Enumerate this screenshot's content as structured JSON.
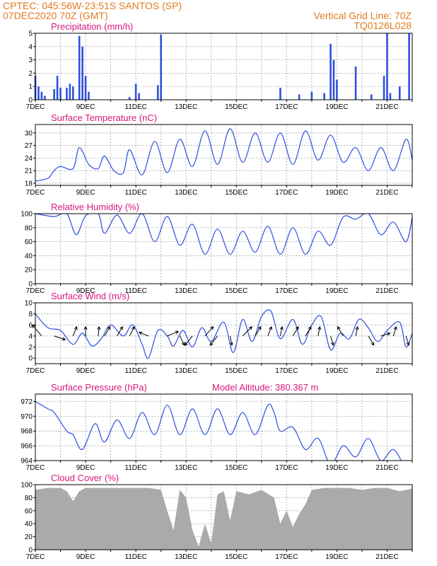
{
  "header": {
    "line1": "CPTEC:   045:56W-23:51S  SANTOS (SP)",
    "line2": "07DEC2020 70Z (GMT)",
    "right1": "Vertical Grid Line: 70Z",
    "right2": "TQ0126L028"
  },
  "colors": {
    "header": "#e07b20",
    "panel_title": "#d6187d",
    "series": "#2f4fe0",
    "cloud": "#aaaaaa",
    "grid": "#9a9a9a"
  },
  "chart_data": [
    {
      "type": "bar",
      "title": "Precipitation (mm/h)",
      "x_start": "2020-12-07",
      "x_end": "2020-12-22",
      "xticks": [
        "7DEC",
        "9DEC",
        "11DEC",
        "13DEC",
        "15DEC",
        "17DEC",
        "19DEC",
        "21DEC"
      ],
      "ylim": [
        0,
        5
      ],
      "yticks": [
        0,
        1,
        2,
        3,
        4,
        5
      ],
      "grid": true,
      "points": [
        [
          "2020-12-07T00",
          1.8
        ],
        [
          "2020-12-07T03",
          1.0
        ],
        [
          "2020-12-07T06",
          0.6
        ],
        [
          "2020-12-07T09",
          0.3
        ],
        [
          "2020-12-07T18",
          0.8
        ],
        [
          "2020-12-07T21",
          1.8
        ],
        [
          "2020-12-08T00",
          0.9
        ],
        [
          "2020-12-08T06",
          0.9
        ],
        [
          "2020-12-08T09",
          1.2
        ],
        [
          "2020-12-08T12",
          1.0
        ],
        [
          "2020-12-08T18",
          4.8
        ],
        [
          "2020-12-08T21",
          4.0
        ],
        [
          "2020-12-09T00",
          1.8
        ],
        [
          "2020-12-09T03",
          0.6
        ],
        [
          "2020-12-10T18",
          0.2
        ],
        [
          "2020-12-11T00",
          1.2
        ],
        [
          "2020-12-11T03",
          0.5
        ],
        [
          "2020-12-11T21",
          1.1
        ],
        [
          "2020-12-12T00",
          4.9
        ],
        [
          "2020-12-16T18",
          0.9
        ],
        [
          "2020-12-17T12",
          0.4
        ],
        [
          "2020-12-18T00",
          0.6
        ],
        [
          "2020-12-18T12",
          0.5
        ],
        [
          "2020-12-18T18",
          4.2
        ],
        [
          "2020-12-18T21",
          3.0
        ],
        [
          "2020-12-19T00",
          1.5
        ],
        [
          "2020-12-19T18",
          2.5
        ],
        [
          "2020-12-20T09",
          0.4
        ],
        [
          "2020-12-20T21",
          1.8
        ],
        [
          "2020-12-21T00",
          5.0
        ],
        [
          "2020-12-21T03",
          0.5
        ],
        [
          "2020-12-21T12",
          1.0
        ],
        [
          "2020-12-21T21",
          5.0
        ]
      ]
    },
    {
      "type": "line",
      "title": "Surface Temperature (nC)",
      "x_start": "2020-12-07",
      "x_end": "2020-12-22",
      "xticks": [
        "7DEC",
        "9DEC",
        "11DEC",
        "13DEC",
        "15DEC",
        "17DEC",
        "19DEC",
        "21DEC"
      ],
      "ylim": [
        17.5,
        32
      ],
      "yticks": [
        18,
        21,
        24,
        27,
        30
      ],
      "grid": true,
      "points": [
        [
          "2020-12-07T00",
          18.5
        ],
        [
          "2020-12-07T12",
          19.2
        ],
        [
          "2020-12-07T18",
          21.0
        ],
        [
          "2020-12-08T00",
          22.0
        ],
        [
          "2020-12-08T12",
          21.5
        ],
        [
          "2020-12-08T18",
          26.5
        ],
        [
          "2020-12-09T03",
          22.5
        ],
        [
          "2020-12-09T12",
          21.5
        ],
        [
          "2020-12-09T18",
          24.5
        ],
        [
          "2020-12-10T03",
          21.0
        ],
        [
          "2020-12-10T12",
          20.5
        ],
        [
          "2020-12-10T18",
          26.0
        ],
        [
          "2020-12-11T06",
          20.0
        ],
        [
          "2020-12-11T18",
          28.0
        ],
        [
          "2020-12-12T06",
          20.5
        ],
        [
          "2020-12-12T18",
          28.5
        ],
        [
          "2020-12-13T06",
          22.0
        ],
        [
          "2020-12-13T18",
          30.5
        ],
        [
          "2020-12-14T06",
          22.5
        ],
        [
          "2020-12-14T18",
          31.0
        ],
        [
          "2020-12-15T06",
          23.0
        ],
        [
          "2020-12-15T18",
          30.0
        ],
        [
          "2020-12-16T06",
          23.0
        ],
        [
          "2020-12-16T18",
          30.0
        ],
        [
          "2020-12-17T06",
          22.5
        ],
        [
          "2020-12-17T18",
          30.5
        ],
        [
          "2020-12-18T06",
          23.5
        ],
        [
          "2020-12-18T18",
          29.5
        ],
        [
          "2020-12-19T06",
          23.0
        ],
        [
          "2020-12-19T18",
          26.5
        ],
        [
          "2020-12-20T06",
          21.0
        ],
        [
          "2020-12-20T18",
          26.5
        ],
        [
          "2020-12-21T06",
          21.0
        ],
        [
          "2020-12-21T18",
          28.5
        ],
        [
          "2020-12-22T00",
          23.5
        ]
      ]
    },
    {
      "type": "line",
      "title": "Relative Humidity (%)",
      "x_start": "2020-12-07",
      "x_end": "2020-12-22",
      "xticks": [
        "7DEC",
        "9DEC",
        "11DEC",
        "13DEC",
        "15DEC",
        "17DEC",
        "19DEC",
        "21DEC"
      ],
      "ylim": [
        0,
        100
      ],
      "yticks": [
        0,
        20,
        40,
        60,
        80,
        100
      ],
      "grid": true,
      "points": [
        [
          "2020-12-07T00",
          100
        ],
        [
          "2020-12-07T18",
          96
        ],
        [
          "2020-12-08T06",
          100
        ],
        [
          "2020-12-08T15",
          70
        ],
        [
          "2020-12-09T00",
          97
        ],
        [
          "2020-12-09T12",
          100
        ],
        [
          "2020-12-09T18",
          72
        ],
        [
          "2020-12-10T06",
          98
        ],
        [
          "2020-12-10T18",
          72
        ],
        [
          "2020-12-11T06",
          100
        ],
        [
          "2020-12-11T18",
          60
        ],
        [
          "2020-12-12T06",
          96
        ],
        [
          "2020-12-12T18",
          55
        ],
        [
          "2020-12-13T06",
          85
        ],
        [
          "2020-12-13T18",
          42
        ],
        [
          "2020-12-14T06",
          78
        ],
        [
          "2020-12-14T18",
          42
        ],
        [
          "2020-12-15T06",
          75
        ],
        [
          "2020-12-15T18",
          45
        ],
        [
          "2020-12-16T06",
          82
        ],
        [
          "2020-12-16T18",
          42
        ],
        [
          "2020-12-17T06",
          80
        ],
        [
          "2020-12-17T18",
          42
        ],
        [
          "2020-12-18T06",
          75
        ],
        [
          "2020-12-18T18",
          55
        ],
        [
          "2020-12-19T06",
          95
        ],
        [
          "2020-12-19T18",
          92
        ],
        [
          "2020-12-20T06",
          100
        ],
        [
          "2020-12-20T18",
          70
        ],
        [
          "2020-12-21T06",
          88
        ],
        [
          "2020-12-21T18",
          60
        ],
        [
          "2020-12-22T00",
          95
        ]
      ]
    },
    {
      "type": "line",
      "title": "Surface Wind (m/s)",
      "x_start": "2020-12-07",
      "x_end": "2020-12-22",
      "xticks": [
        "7DEC",
        "9DEC",
        "11DEC",
        "13DEC",
        "15DEC",
        "17DEC",
        "19DEC",
        "21DEC"
      ],
      "ylim": [
        -1,
        10
      ],
      "yticks": [
        0,
        2,
        4,
        6,
        8,
        10
      ],
      "grid": true,
      "points": [
        [
          "2020-12-07T00",
          8.0
        ],
        [
          "2020-12-07T12",
          5.5
        ],
        [
          "2020-12-08T00",
          5.0
        ],
        [
          "2020-12-08T12",
          2.5
        ],
        [
          "2020-12-08T21",
          4.5
        ],
        [
          "2020-12-09T06",
          2.2
        ],
        [
          "2020-12-09T15",
          3.5
        ],
        [
          "2020-12-10T00",
          6.0
        ],
        [
          "2020-12-10T12",
          4.0
        ],
        [
          "2020-12-10T21",
          6.0
        ],
        [
          "2020-12-11T06",
          2.5
        ],
        [
          "2020-12-11T12",
          0.0
        ],
        [
          "2020-12-11T21",
          5.0
        ],
        [
          "2020-12-12T06",
          4.0
        ],
        [
          "2020-12-12T12",
          2.2
        ],
        [
          "2020-12-12T21",
          5.0
        ],
        [
          "2020-12-13T06",
          2.0
        ],
        [
          "2020-12-13T15",
          5.5
        ],
        [
          "2020-12-14T00",
          3.0
        ],
        [
          "2020-12-14T12",
          6.5
        ],
        [
          "2020-12-14T21",
          1.0
        ],
        [
          "2020-12-15T06",
          7.0
        ],
        [
          "2020-12-15T15",
          3.0
        ],
        [
          "2020-12-16T00",
          7.5
        ],
        [
          "2020-12-16T09",
          8.5
        ],
        [
          "2020-12-16T18",
          3.5
        ],
        [
          "2020-12-17T06",
          7.0
        ],
        [
          "2020-12-17T15",
          2.5
        ],
        [
          "2020-12-18T00",
          6.0
        ],
        [
          "2020-12-18T09",
          7.5
        ],
        [
          "2020-12-18T18",
          1.5
        ],
        [
          "2020-12-19T03",
          4.5
        ],
        [
          "2020-12-19T12",
          3.5
        ],
        [
          "2020-12-19T21",
          7.0
        ],
        [
          "2020-12-20T06",
          5.5
        ],
        [
          "2020-12-20T15",
          3.0
        ],
        [
          "2020-12-21T00",
          5.0
        ],
        [
          "2020-12-21T12",
          6.5
        ],
        [
          "2020-12-21T18",
          2.0
        ],
        [
          "2020-12-22T00",
          4.5
        ]
      ],
      "arrows": [
        [
          "2020-12-07T06",
          -1.0,
          1.2
        ],
        [
          "2020-12-07T18",
          1.2,
          -0.4
        ],
        [
          "2020-12-08T12",
          0.4,
          1.0
        ],
        [
          "2020-12-09T00",
          0.0,
          1.0
        ],
        [
          "2020-12-09T12",
          0.1,
          1.0
        ],
        [
          "2020-12-09T18",
          0.6,
          1.0
        ],
        [
          "2020-12-10T06",
          0.6,
          1.0
        ],
        [
          "2020-12-10T18",
          0.5,
          1.0
        ],
        [
          "2020-12-11T12",
          -1.0,
          0.4
        ],
        [
          "2020-12-12T06",
          1.2,
          0.5
        ],
        [
          "2020-12-12T18",
          0.5,
          -1.0
        ],
        [
          "2020-12-13T06",
          -0.8,
          -1.0
        ],
        [
          "2020-12-13T18",
          0.9,
          1.0
        ],
        [
          "2020-12-14T06",
          -0.8,
          -1.0
        ],
        [
          "2020-12-14T18",
          0.2,
          -1.0
        ],
        [
          "2020-12-15T06",
          1.0,
          1.0
        ],
        [
          "2020-12-15T18",
          0.6,
          1.0
        ],
        [
          "2020-12-16T06",
          0.4,
          1.0
        ],
        [
          "2020-12-16T18",
          0.2,
          1.0
        ],
        [
          "2020-12-17T06",
          0.6,
          1.0
        ],
        [
          "2020-12-17T18",
          0.6,
          1.0
        ],
        [
          "2020-12-18T06",
          0.2,
          1.0
        ],
        [
          "2020-12-18T18",
          0.3,
          -1.0
        ],
        [
          "2020-12-19T06",
          -0.6,
          1.0
        ],
        [
          "2020-12-19T18",
          0.2,
          1.0
        ],
        [
          "2020-12-20T06",
          0.6,
          -1.0
        ],
        [
          "2020-12-20T18",
          1.0,
          0.3
        ],
        [
          "2020-12-21T06",
          0.3,
          1.0
        ],
        [
          "2020-12-21T18",
          0.3,
          -1.0
        ]
      ]
    },
    {
      "type": "line",
      "title": "Surface Pressure (hPa)",
      "annotation": "Model Altitude: 380.367 m",
      "x_start": "2020-12-07",
      "x_end": "2020-12-22",
      "xticks": [
        "7DEC",
        "9DEC",
        "11DEC",
        "13DEC",
        "15DEC",
        "17DEC",
        "19DEC",
        "21DEC"
      ],
      "ylim": [
        964,
        973
      ],
      "yticks": [
        964,
        966,
        968,
        970,
        972
      ],
      "grid": true,
      "points": [
        [
          "2020-12-07T00",
          972.0
        ],
        [
          "2020-12-07T12",
          971.0
        ],
        [
          "2020-12-07T18",
          970.5
        ],
        [
          "2020-12-08T06",
          968.0
        ],
        [
          "2020-12-08T12",
          967.5
        ],
        [
          "2020-12-08T21",
          965.5
        ],
        [
          "2020-12-09T09",
          969.0
        ],
        [
          "2020-12-09T18",
          966.5
        ],
        [
          "2020-12-10T06",
          969.5
        ],
        [
          "2020-12-10T18",
          967.0
        ],
        [
          "2020-12-11T06",
          970.5
        ],
        [
          "2020-12-11T18",
          967.5
        ],
        [
          "2020-12-12T06",
          971.5
        ],
        [
          "2020-12-12T18",
          967.5
        ],
        [
          "2020-12-13T06",
          971.0
        ],
        [
          "2020-12-13T18",
          967.5
        ],
        [
          "2020-12-14T06",
          971.0
        ],
        [
          "2020-12-14T18",
          967.5
        ],
        [
          "2020-12-15T06",
          970.5
        ],
        [
          "2020-12-15T18",
          967.5
        ],
        [
          "2020-12-16T06",
          971.5
        ],
        [
          "2020-12-16T12",
          970.5
        ],
        [
          "2020-12-16T18",
          968.0
        ],
        [
          "2020-12-17T06",
          968.5
        ],
        [
          "2020-12-17T18",
          965.5
        ],
        [
          "2020-12-18T06",
          967.0
        ],
        [
          "2020-12-18T18",
          963.5
        ],
        [
          "2020-12-19T06",
          966.0
        ],
        [
          "2020-12-19T18",
          964.5
        ],
        [
          "2020-12-20T06",
          967.0
        ],
        [
          "2020-12-20T18",
          964.0
        ],
        [
          "2020-12-21T06",
          965.5
        ],
        [
          "2020-12-21T18",
          963.0
        ],
        [
          "2020-12-22T00",
          964.0
        ]
      ]
    },
    {
      "type": "area",
      "title": "Cloud Cover (%)",
      "x_start": "2020-12-07",
      "x_end": "2020-12-22",
      "xticks": [
        "7DEC",
        "9DEC",
        "11DEC",
        "13DEC",
        "15DEC",
        "17DEC",
        "19DEC",
        "21DEC"
      ],
      "ylim": [
        0,
        100
      ],
      "yticks": [
        0,
        20,
        40,
        60,
        80,
        100
      ],
      "grid": true,
      "points": [
        [
          "2020-12-07T00",
          92
        ],
        [
          "2020-12-07T12",
          95
        ],
        [
          "2020-12-08T00",
          95
        ],
        [
          "2020-12-08T06",
          90
        ],
        [
          "2020-12-08T12",
          75
        ],
        [
          "2020-12-08T18",
          90
        ],
        [
          "2020-12-09T00",
          95
        ],
        [
          "2020-12-09T12",
          95
        ],
        [
          "2020-12-10T00",
          95
        ],
        [
          "2020-12-10T12",
          95
        ],
        [
          "2020-12-11T00",
          95
        ],
        [
          "2020-12-11T12",
          95
        ],
        [
          "2020-12-12T00",
          92
        ],
        [
          "2020-12-12T06",
          60
        ],
        [
          "2020-12-12T12",
          30
        ],
        [
          "2020-12-12T18",
          92
        ],
        [
          "2020-12-13T00",
          80
        ],
        [
          "2020-12-13T06",
          30
        ],
        [
          "2020-12-13T12",
          5
        ],
        [
          "2020-12-13T18",
          40
        ],
        [
          "2020-12-14T00",
          10
        ],
        [
          "2020-12-14T06",
          85
        ],
        [
          "2020-12-14T12",
          90
        ],
        [
          "2020-12-14T18",
          45
        ],
        [
          "2020-12-15T00",
          90
        ],
        [
          "2020-12-15T12",
          85
        ],
        [
          "2020-12-16T00",
          92
        ],
        [
          "2020-12-16T12",
          80
        ],
        [
          "2020-12-16T18",
          40
        ],
        [
          "2020-12-17T00",
          60
        ],
        [
          "2020-12-17T06",
          35
        ],
        [
          "2020-12-17T12",
          55
        ],
        [
          "2020-12-17T18",
          70
        ],
        [
          "2020-12-18T00",
          92
        ],
        [
          "2020-12-18T12",
          95
        ],
        [
          "2020-12-19T00",
          95
        ],
        [
          "2020-12-19T12",
          95
        ],
        [
          "2020-12-20T00",
          92
        ],
        [
          "2020-12-20T12",
          95
        ],
        [
          "2020-12-21T00",
          95
        ],
        [
          "2020-12-21T12",
          90
        ],
        [
          "2020-12-22T00",
          94
        ]
      ]
    }
  ]
}
